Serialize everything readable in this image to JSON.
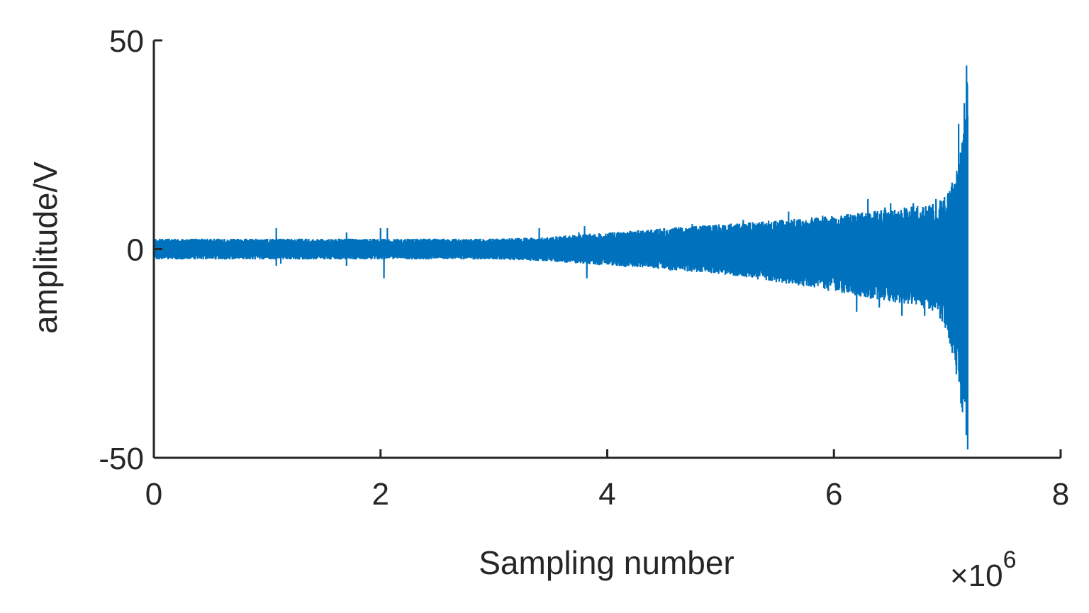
{
  "chart_data": {
    "type": "line",
    "title": "",
    "xlabel": "Sampling number",
    "ylabel": "amplitude/V",
    "x_multiplier_label": "×10",
    "x_multiplier_exponent": "6",
    "xlim": [
      0,
      8
    ],
    "ylim": [
      -50,
      50
    ],
    "xticks": [
      0,
      2,
      4,
      6,
      8
    ],
    "xtick_labels": [
      "0",
      "2",
      "4",
      "6",
      "8"
    ],
    "yticks": [
      -50,
      0,
      50
    ],
    "ytick_labels": [
      "-50",
      "0",
      "50"
    ],
    "grid": false,
    "legend": "none",
    "line_color": "#0072BD",
    "series": [
      {
        "envelope_x": [
          0,
          0.5,
          1,
          1.5,
          2,
          2.5,
          3,
          3.5,
          4,
          4.5,
          5,
          5.5,
          6,
          6.3,
          6.6,
          6.9,
          7.0,
          7.1,
          7.15,
          7.18
        ],
        "upper": [
          2.5,
          2.5,
          2.5,
          2.5,
          2.5,
          2.5,
          2.5,
          3,
          4,
          5,
          6,
          7,
          8,
          9,
          10,
          11,
          13,
          20,
          30,
          43
        ],
        "lower": [
          -2.5,
          -2.5,
          -2.5,
          -2.5,
          -2.5,
          -2.5,
          -2.5,
          -3,
          -4,
          -5,
          -6,
          -8,
          -10,
          -12,
          -13,
          -15,
          -20,
          -32,
          -44,
          -48
        ],
        "spikes": [
          {
            "x": 1.08,
            "y": 5
          },
          {
            "x": 1.08,
            "y": -4
          },
          {
            "x": 1.12,
            "y": -3.5
          },
          {
            "x": 1.7,
            "y": 4
          },
          {
            "x": 1.7,
            "y": -4
          },
          {
            "x": 2.0,
            "y": 5
          },
          {
            "x": 2.03,
            "y": -7
          },
          {
            "x": 2.06,
            "y": 5
          },
          {
            "x": 3.4,
            "y": 5
          },
          {
            "x": 3.75,
            "y": 4
          },
          {
            "x": 3.8,
            "y": 5.5
          },
          {
            "x": 3.82,
            "y": -7
          },
          {
            "x": 4.3,
            "y": 4
          },
          {
            "x": 4.5,
            "y": 5
          },
          {
            "x": 4.75,
            "y": 6
          },
          {
            "x": 5.2,
            "y": 7
          },
          {
            "x": 5.6,
            "y": 9
          },
          {
            "x": 5.9,
            "y": 8
          },
          {
            "x": 5.95,
            "y": -10
          },
          {
            "x": 6.2,
            "y": -15
          },
          {
            "x": 6.3,
            "y": 12
          },
          {
            "x": 6.4,
            "y": -14
          },
          {
            "x": 6.45,
            "y": 10
          },
          {
            "x": 6.5,
            "y": 11
          },
          {
            "x": 6.6,
            "y": -16
          },
          {
            "x": 6.7,
            "y": 11
          },
          {
            "x": 6.8,
            "y": -16
          },
          {
            "x": 6.9,
            "y": 12
          },
          {
            "x": 7.0,
            "y": -13
          },
          {
            "x": 7.05,
            "y": 14
          },
          {
            "x": 7.08,
            "y": -30
          },
          {
            "x": 7.1,
            "y": 30
          },
          {
            "x": 7.12,
            "y": -37
          },
          {
            "x": 7.15,
            "y": 35
          },
          {
            "x": 7.17,
            "y": 44
          },
          {
            "x": 7.18,
            "y": -48
          }
        ]
      }
    ]
  }
}
